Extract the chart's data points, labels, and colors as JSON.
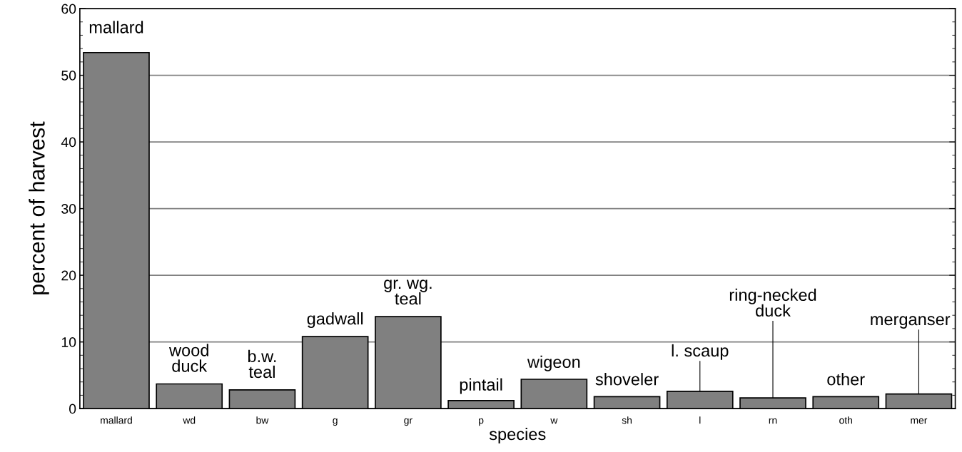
{
  "chart_data": {
    "type": "bar",
    "xlabel": "species",
    "ylabel": "percent of harvest",
    "categories": [
      "mallard",
      "wd",
      "bw",
      "g",
      "gr",
      "p",
      "w",
      "sh",
      "l",
      "rn",
      "oth",
      "mer"
    ],
    "values": [
      53.4,
      3.7,
      2.8,
      10.8,
      13.8,
      1.2,
      4.4,
      1.8,
      2.6,
      1.6,
      1.8,
      2.2
    ],
    "color": "#808080",
    "ylim": [
      0,
      60
    ],
    "yticks": [
      0,
      10,
      20,
      30,
      40,
      50,
      60
    ],
    "grid": "y",
    "annotations": [
      {
        "text": "mallard",
        "x": "mallard",
        "y": 53.4
      },
      {
        "text": "wood\nduck",
        "x": "wd",
        "y": 3.7
      },
      {
        "text": "b.w.\nteal",
        "x": "bw",
        "y": 2.8
      },
      {
        "text": "gadwall",
        "x": "g",
        "y": 10.8
      },
      {
        "text": "gr. wg.\nteal",
        "x": "gr",
        "y": 13.8
      },
      {
        "text": "pintail",
        "x": "p",
        "y": 1.2
      },
      {
        "text": "wigeon",
        "x": "w",
        "y": 4.4
      },
      {
        "text": "shoveler",
        "x": "sh",
        "y": 1.8
      },
      {
        "text": "l. scaup",
        "x": "l",
        "y": 2.6
      },
      {
        "text": "ring-necked\nduck",
        "x": "rn",
        "y": 1.6
      },
      {
        "text": "other",
        "x": "oth",
        "y": 1.8
      },
      {
        "text": "merganser",
        "x": "mer",
        "y": 2.2
      }
    ]
  }
}
